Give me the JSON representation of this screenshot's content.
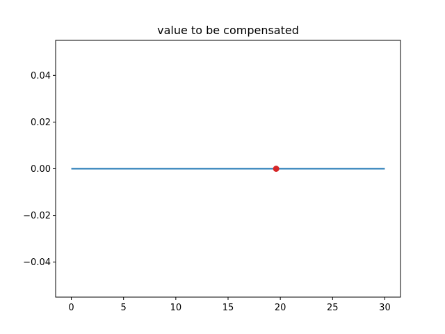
{
  "chart_data": {
    "type": "line",
    "title": "value to be compensated",
    "xlabel": "",
    "ylabel": "",
    "xlim": [
      -1.5,
      31.5
    ],
    "ylim": [
      -0.055,
      0.055
    ],
    "x_ticks": [
      0,
      5,
      10,
      15,
      20,
      25,
      30
    ],
    "x_tick_labels": [
      "0",
      "5",
      "10",
      "15",
      "20",
      "25",
      "30"
    ],
    "y_ticks": [
      0.04,
      0.02,
      0.0,
      -0.02,
      -0.04
    ],
    "y_tick_labels": [
      "0.04",
      "0.02",
      "0.00",
      "−0.02",
      "−0.04"
    ],
    "grid": false,
    "series": [
      {
        "x": [
          0,
          30
        ],
        "y": [
          0,
          0
        ],
        "color": "#1f77b4",
        "style": "line"
      },
      {
        "x": [
          19.6
        ],
        "y": [
          0
        ],
        "color": "#d62728",
        "style": "marker"
      }
    ]
  }
}
